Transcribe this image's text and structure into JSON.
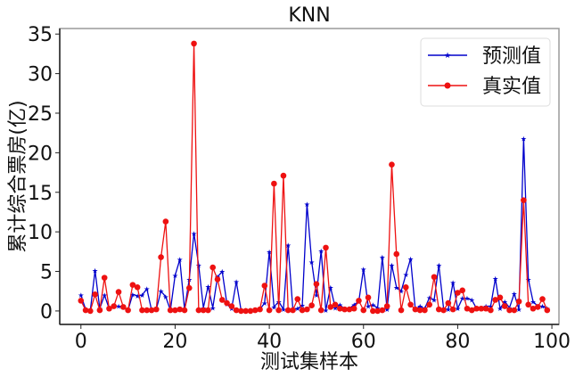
{
  "chart_data": {
    "type": "line",
    "title": "KNN",
    "xlabel": "测试集样本",
    "ylabel": "累计综合票房(亿)",
    "xlim": [
      -4.5,
      101.5
    ],
    "ylim": [
      -1.7,
      35.7
    ],
    "xticks": [
      0,
      20,
      40,
      60,
      80,
      100
    ],
    "yticks": [
      0,
      5,
      10,
      15,
      20,
      25,
      30,
      35
    ],
    "grid": false,
    "legend_position": "upper right",
    "x": [
      0,
      1,
      2,
      3,
      4,
      5,
      6,
      7,
      8,
      9,
      10,
      11,
      12,
      13,
      14,
      15,
      16,
      17,
      18,
      19,
      20,
      21,
      22,
      23,
      24,
      25,
      26,
      27,
      28,
      29,
      30,
      31,
      32,
      33,
      34,
      35,
      36,
      37,
      38,
      39,
      40,
      41,
      42,
      43,
      44,
      45,
      46,
      47,
      48,
      49,
      50,
      51,
      52,
      53,
      54,
      55,
      56,
      57,
      58,
      59,
      60,
      61,
      62,
      63,
      64,
      65,
      66,
      67,
      68,
      69,
      70,
      71,
      72,
      73,
      74,
      75,
      76,
      77,
      78,
      79,
      80,
      81,
      82,
      83,
      84,
      85,
      86,
      87,
      88,
      89,
      90,
      91,
      92,
      93,
      94,
      95,
      96,
      97,
      98,
      99
    ],
    "series": [
      {
        "name": "预测值",
        "color": "#0000cc",
        "marker": "star",
        "values": [
          2.0,
          0.2,
          0.1,
          5.1,
          0.3,
          2.0,
          0.3,
          0.6,
          0.6,
          0.5,
          0.1,
          2.1,
          1.9,
          2.0,
          2.8,
          0.1,
          0.2,
          2.5,
          1.8,
          0.1,
          4.5,
          6.5,
          0.2,
          4.0,
          9.8,
          5.8,
          0.4,
          3.1,
          0.4,
          4.3,
          5.0,
          0.9,
          0.3,
          3.7,
          0.1,
          0.1,
          0.1,
          0.1,
          0.2,
          1.0,
          7.5,
          0.5,
          1.2,
          0.2,
          8.3,
          0.2,
          0.3,
          0.7,
          13.5,
          6.2,
          2.0,
          7.6,
          0.1,
          3.0,
          0.4,
          0.8,
          0.2,
          0.3,
          0.8,
          1.2,
          5.3,
          0.6,
          0.8,
          0.4,
          6.8,
          0.2,
          5.8,
          3.0,
          2.5,
          4.6,
          6.6,
          0.2,
          0.6,
          0.3,
          1.7,
          1.4,
          5.8,
          0.3,
          0.2,
          3.6,
          0.3,
          1.6,
          1.6,
          1.4,
          0.3,
          0.3,
          0.6,
          0.6,
          4.1,
          0.3,
          1.2,
          0.4,
          2.2,
          0.2,
          21.8,
          4.0,
          1.2,
          0.6,
          0.6,
          0.3
        ],
        "legend": "预测值"
      },
      {
        "name": "真实值",
        "color": "#ee1111",
        "marker": "circle",
        "values": [
          1.3,
          0.1,
          0.0,
          2.1,
          0.1,
          4.2,
          0.3,
          0.6,
          2.4,
          0.5,
          0.1,
          3.3,
          3.0,
          0.1,
          0.1,
          0.1,
          0.2,
          6.8,
          11.3,
          0.1,
          0.1,
          0.2,
          0.1,
          2.9,
          33.8,
          0.1,
          0.1,
          0.1,
          5.5,
          4.0,
          1.4,
          1.0,
          0.6,
          0.1,
          0.0,
          0.0,
          0.0,
          0.1,
          0.2,
          3.2,
          0.1,
          16.1,
          0.1,
          17.1,
          0.1,
          0.1,
          1.5,
          0.1,
          0.2,
          0.7,
          3.4,
          0.1,
          8.0,
          0.5,
          0.8,
          0.3,
          0.2,
          0.2,
          0.3,
          1.3,
          0.1,
          1.7,
          0.0,
          0.0,
          0.1,
          0.6,
          18.5,
          7.2,
          0.1,
          3.0,
          0.8,
          0.2,
          0.1,
          0.1,
          0.8,
          4.3,
          0.2,
          0.1,
          1.0,
          0.2,
          2.3,
          2.6,
          0.3,
          0.1,
          0.3,
          0.3,
          0.3,
          0.1,
          1.4,
          1.7,
          0.6,
          0.1,
          0.1,
          1.2,
          14.0,
          0.8,
          0.3,
          0.5,
          1.5,
          0.1
        ],
        "legend": "真实值"
      }
    ]
  }
}
